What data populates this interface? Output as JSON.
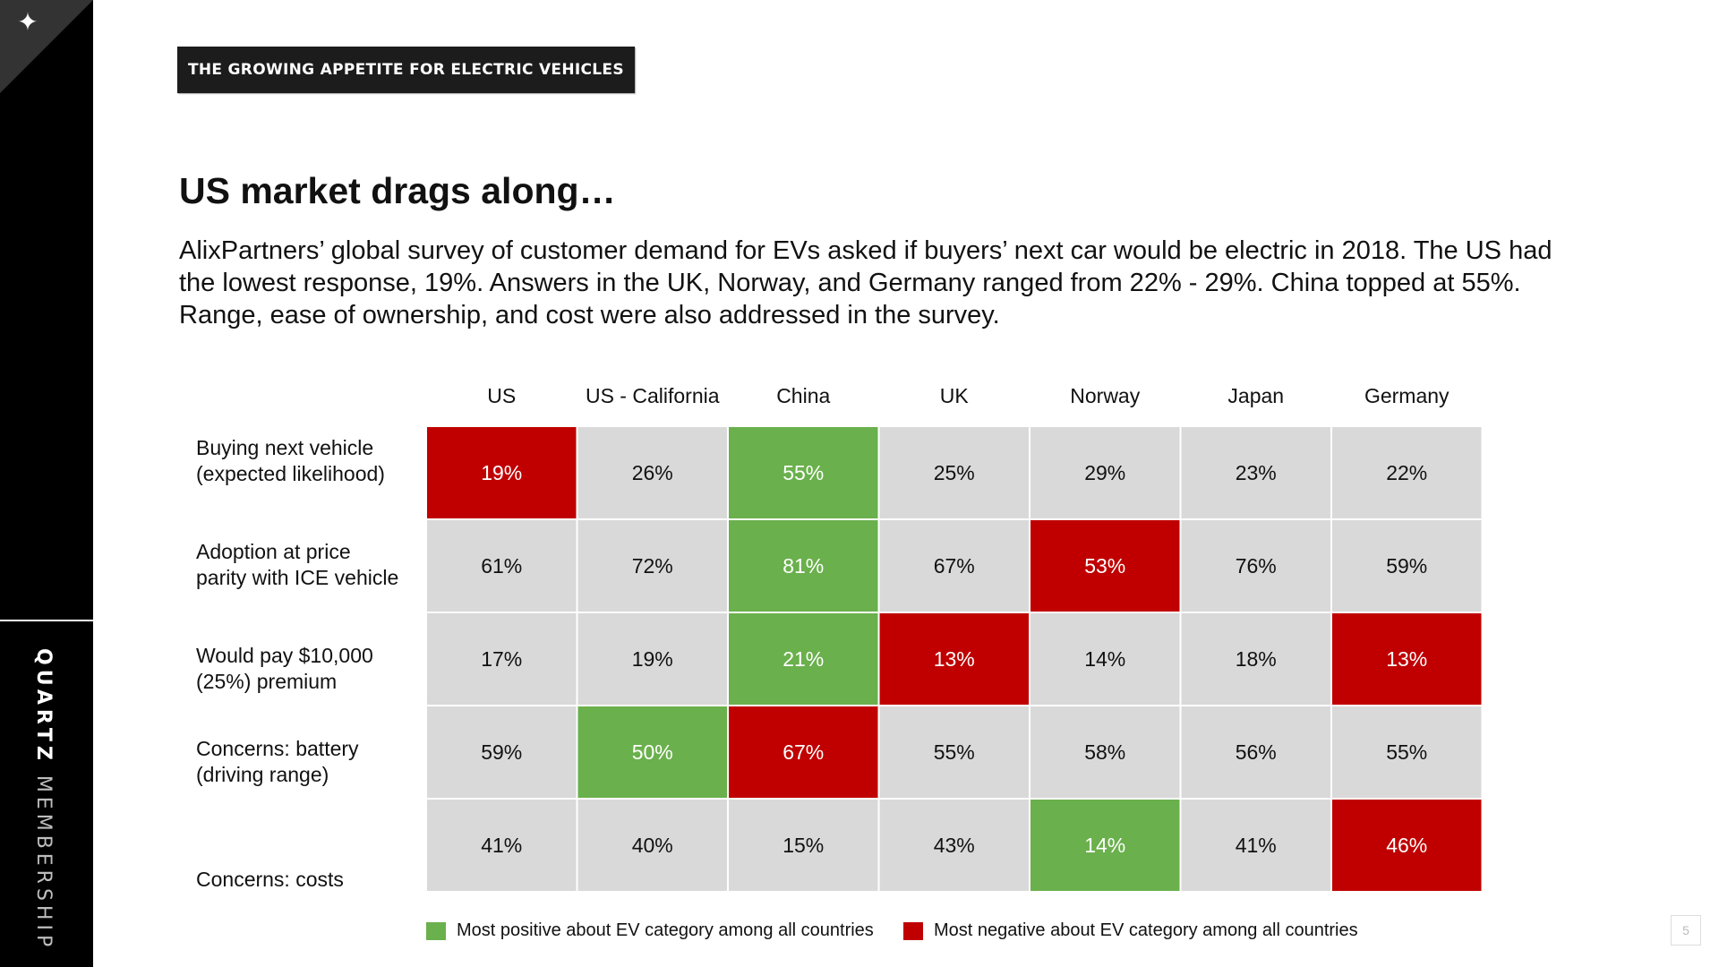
{
  "brand": {
    "light": "QUARTZ",
    "bold": "MEMBERSHIP"
  },
  "header_tag": "THE GROWING APPETITE FOR ELECTRIC VEHICLES",
  "title": "US market drags along…",
  "description": "AlixPartners’ global survey of customer demand for EVs asked if buyers’ next car would be electric in 2018. The US had the lowest response, 19%. Answers in the UK, Norway, and Germany ranged from 22% - 29%. China topped at 55%. Range, ease of ownership, and cost were also addressed in the survey.",
  "page_number": "5",
  "colors": {
    "positive": "#6ab04c",
    "negative": "#c00000",
    "neutral": "#d9d9d9",
    "text_dark": "#111111",
    "text_light": "#ffffff"
  },
  "legend": {
    "positive": "Most positive about EV category among all countries",
    "negative": "Most negative about EV category among all countries"
  },
  "chart_data": {
    "type": "table",
    "columns": [
      "US",
      "US - California",
      "China",
      "UK",
      "Norway",
      "Japan",
      "Germany"
    ],
    "rows": [
      {
        "label_lines": [
          "Buying next vehicle",
          "(expected likelihood)"
        ],
        "values": [
          "19%",
          "26%",
          "55%",
          "25%",
          "29%",
          "23%",
          "22%"
        ],
        "status": [
          "neg",
          "",
          "pos",
          "",
          "",
          "",
          ""
        ]
      },
      {
        "label_lines": [
          "Adoption at price",
          "parity with ICE vehicle"
        ],
        "values": [
          "61%",
          "72%",
          "81%",
          "67%",
          "53%",
          "76%",
          "59%"
        ],
        "status": [
          "",
          "",
          "pos",
          "",
          "neg",
          "",
          ""
        ]
      },
      {
        "label_lines": [
          "Would pay $10,000",
          "(25%) premium"
        ],
        "values": [
          "17%",
          "19%",
          "21%",
          "13%",
          "14%",
          "18%",
          "13%"
        ],
        "status": [
          "",
          "",
          "pos",
          "neg",
          "",
          "",
          "neg"
        ]
      },
      {
        "label_lines": [
          "Concerns: battery",
          "(driving range)"
        ],
        "values": [
          "59%",
          "50%",
          "67%",
          "55%",
          "58%",
          "56%",
          "55%"
        ],
        "status": [
          "",
          "pos",
          "neg",
          "",
          "",
          "",
          ""
        ]
      },
      {
        "label_lines": [
          "Concerns: costs"
        ],
        "values": [
          "41%",
          "40%",
          "15%",
          "43%",
          "14%",
          "41%",
          "46%"
        ],
        "status": [
          "",
          "",
          "",
          "",
          "pos",
          "",
          "neg"
        ]
      }
    ]
  }
}
